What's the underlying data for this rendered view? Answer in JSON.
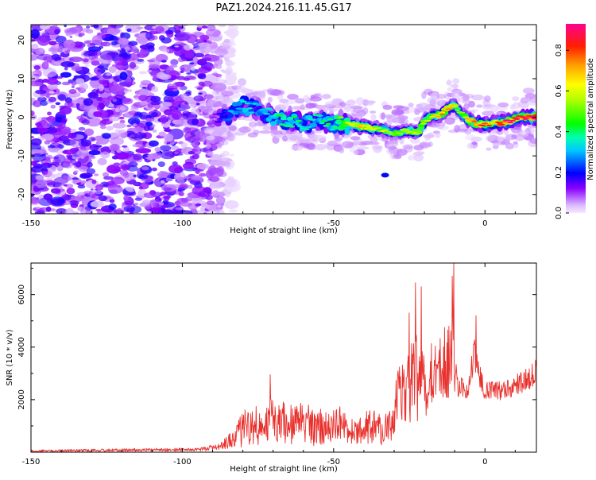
{
  "title": "PAZ1.2024.216.11.45.G17",
  "chart_data": [
    {
      "type": "heatmap",
      "xlabel": "Height of straight line (km)",
      "ylabel": "Frequency (Hz)",
      "xlim": [
        -150,
        17
      ],
      "ylim": [
        -25,
        24
      ],
      "xticks": [
        -150,
        -100,
        -50,
        0
      ],
      "yticks": [
        -20,
        -10,
        0,
        10,
        20
      ],
      "colorbar": {
        "label": "Normalized spectral amplitude",
        "ticks": [
          "0.0",
          "0.2",
          "0.4",
          "0.6",
          "0.8"
        ],
        "range": [
          0,
          0.93
        ]
      },
      "ridge": {
        "x": [
          -90,
          -85,
          -80,
          -75,
          -70,
          -65,
          -60,
          -55,
          -50,
          -45,
          -40,
          -35,
          -30,
          -25,
          -22,
          -20,
          -18,
          -15,
          -12,
          -10,
          -8,
          -5,
          -3,
          0,
          3,
          5,
          8,
          10,
          12,
          15,
          17
        ],
        "y": [
          -1,
          0.5,
          3,
          2,
          0,
          -1,
          -1.5,
          -1,
          -1.5,
          -2,
          -2.5,
          -3,
          -4,
          -3.5,
          -4,
          -1,
          0,
          0.5,
          2.5,
          3,
          1,
          -1,
          -1.5,
          -2,
          -1.5,
          -1.5,
          -1,
          -0.5,
          0,
          0,
          0
        ],
        "amplitude": [
          0.1,
          0.25,
          0.35,
          0.3,
          0.35,
          0.4,
          0.35,
          0.35,
          0.4,
          0.55,
          0.7,
          0.55,
          0.5,
          0.6,
          0.55,
          0.55,
          0.55,
          0.7,
          0.75,
          0.6,
          0.45,
          0.75,
          0.8,
          0.75,
          0.7,
          0.85,
          0.9,
          0.8,
          0.85,
          0.9,
          0.9
        ]
      },
      "noise_x_range": [
        -150,
        -83
      ]
    },
    {
      "type": "line",
      "xlabel": "Height of straight line (km)",
      "ylabel": "SNR (10 * v/v)",
      "xlim": [
        -150,
        17
      ],
      "ylim": [
        0,
        7200
      ],
      "xticks": [
        -150,
        -100,
        -50,
        0
      ],
      "yticks": [
        2000,
        4000,
        6000
      ],
      "color": "#e8302c",
      "envelope": {
        "x": [
          -150,
          -120,
          -95,
          -88,
          -83,
          -80,
          -75,
          -72,
          -68,
          -64,
          -60,
          -56,
          -52,
          -48,
          -45,
          -42,
          -38,
          -35,
          -32,
          -30,
          -28,
          -25,
          -23,
          -22,
          -20,
          -18,
          -16,
          -13,
          -11,
          -10.5,
          -10,
          -8,
          -6,
          -3,
          -1,
          0,
          3,
          6,
          9,
          12,
          15,
          17
        ],
        "mean": [
          50,
          80,
          100,
          200,
          500,
          900,
          1000,
          1300,
          1200,
          1100,
          1300,
          1000,
          900,
          1100,
          800,
          700,
          1000,
          1000,
          800,
          1500,
          2400,
          2400,
          3000,
          2400,
          2300,
          3000,
          3000,
          3500,
          3600,
          3800,
          2600,
          2600,
          2400,
          3800,
          2500,
          2400,
          2400,
          2300,
          2500,
          2600,
          2800,
          3100
        ],
        "spread": [
          40,
          60,
          60,
          150,
          350,
          700,
          800,
          900,
          900,
          800,
          900,
          800,
          600,
          700,
          500,
          500,
          700,
          700,
          600,
          900,
          1200,
          1400,
          1900,
          1700,
          1500,
          1300,
          1300,
          1500,
          1800,
          1900,
          900,
          600,
          500,
          900,
          600,
          400,
          350,
          350,
          400,
          450,
          500,
          500
        ]
      },
      "peaks": [
        {
          "x": -71,
          "y": 2950
        },
        {
          "x": -25,
          "y": 5300
        },
        {
          "x": -23,
          "y": 6450
        },
        {
          "x": -21,
          "y": 6300
        },
        {
          "x": -10.3,
          "y": 7200
        },
        {
          "x": -10.8,
          "y": 6700
        },
        {
          "x": -3,
          "y": 5200
        }
      ],
      "seed": 20240216
    }
  ]
}
